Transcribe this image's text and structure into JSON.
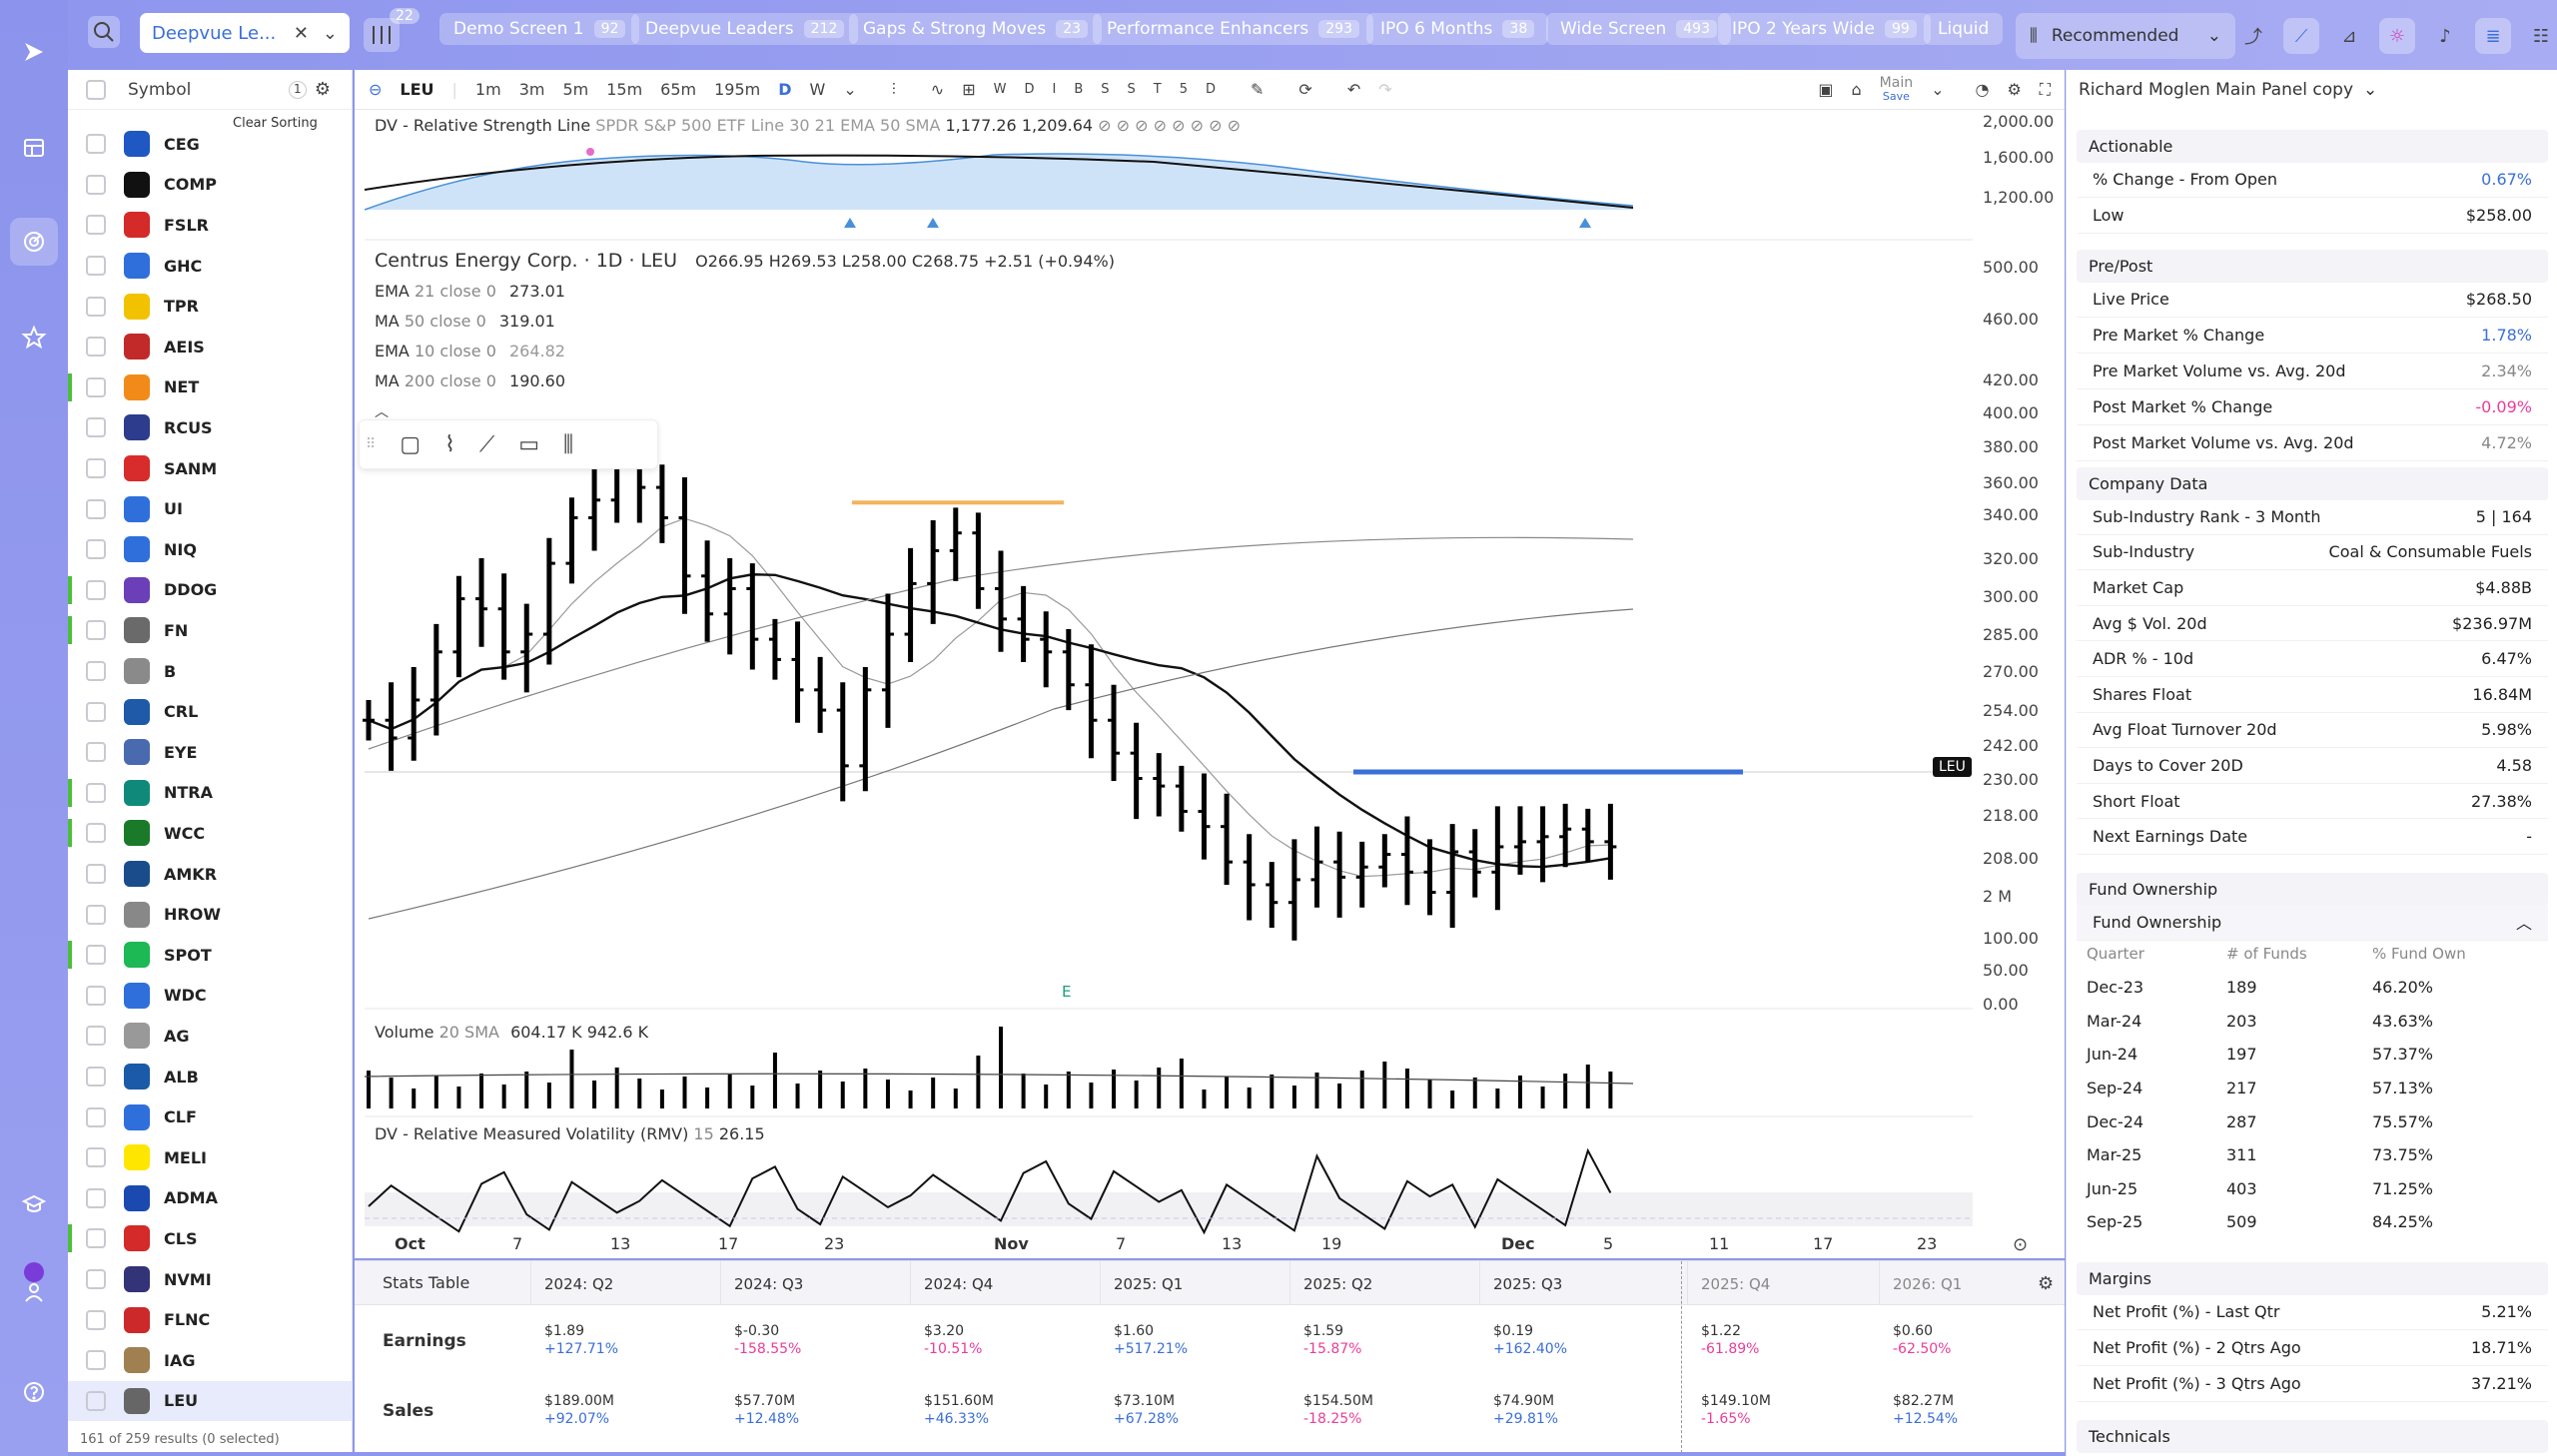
{
  "leftbar": {
    "icons": [
      "logo-icon",
      "grid-icon",
      "radar-icon",
      "star-icon",
      "graduation-icon",
      "user-icon",
      "help-icon"
    ]
  },
  "topbar": {
    "search_tab": "Deepvue Le...",
    "filter_badge": "22",
    "tabs": [
      {
        "label": "Demo Screen 1",
        "count": "92"
      },
      {
        "label": "Deepvue Leaders",
        "count": "212"
      },
      {
        "label": "Gaps & Strong Moves",
        "count": "23"
      },
      {
        "label": "Performance Enhancers",
        "count": "293"
      },
      {
        "label": "IPO 6 Months",
        "count": "38"
      },
      {
        "label": "Wide Screen",
        "count": "493"
      },
      {
        "label": "IPO 2 Years Wide",
        "count": "99"
      },
      {
        "label": "Liquid",
        "count": ""
      }
    ],
    "sort_label": "Recommended"
  },
  "watchlist": {
    "header": "Symbol",
    "sort_count": "1",
    "clear_sorting": "Clear Sorting",
    "symbols": [
      {
        "sym": "CEG",
        "color": "#1f57c3",
        "bar": false
      },
      {
        "sym": "COMP",
        "color": "#111111",
        "bar": false
      },
      {
        "sym": "FSLR",
        "color": "#d42a2a",
        "bar": false
      },
      {
        "sym": "GHC",
        "color": "#2f6fdc",
        "bar": false
      },
      {
        "sym": "TPR",
        "color": "#f2c200",
        "bar": false
      },
      {
        "sym": "AEIS",
        "color": "#c22a2a",
        "bar": false
      },
      {
        "sym": "NET",
        "color": "#f28a1a",
        "bar": true
      },
      {
        "sym": "RCUS",
        "color": "#2d3c8c",
        "bar": false
      },
      {
        "sym": "SANM",
        "color": "#d82c2c",
        "bar": false
      },
      {
        "sym": "UI",
        "color": "#2f6fdc",
        "bar": false
      },
      {
        "sym": "NIQ",
        "color": "#2f6fdc",
        "bar": false
      },
      {
        "sym": "DDOG",
        "color": "#6b3fb8",
        "bar": true
      },
      {
        "sym": "FN",
        "color": "#6a6a6a",
        "bar": true
      },
      {
        "sym": "B",
        "color": "#8a8a8a",
        "bar": false
      },
      {
        "sym": "CRL",
        "color": "#1e5aa8",
        "bar": false
      },
      {
        "sym": "EYE",
        "color": "#4a6ab0",
        "bar": false
      },
      {
        "sym": "NTRA",
        "color": "#0f8a7a",
        "bar": true
      },
      {
        "sym": "WCC",
        "color": "#1a7a2a",
        "bar": true
      },
      {
        "sym": "AMKR",
        "color": "#1a4c8c",
        "bar": false
      },
      {
        "sym": "HROW",
        "color": "#888888",
        "bar": false
      },
      {
        "sym": "SPOT",
        "color": "#1db954",
        "bar": true
      },
      {
        "sym": "WDC",
        "color": "#2f6fdc",
        "bar": false
      },
      {
        "sym": "AG",
        "color": "#999999",
        "bar": false
      },
      {
        "sym": "ALB",
        "color": "#1a5aa8",
        "bar": false
      },
      {
        "sym": "CLF",
        "color": "#2f6fdc",
        "bar": false
      },
      {
        "sym": "MELI",
        "color": "#ffe600",
        "bar": false
      },
      {
        "sym": "ADMA",
        "color": "#1a4ab0",
        "bar": false
      },
      {
        "sym": "CLS",
        "color": "#d42a2a",
        "bar": true
      },
      {
        "sym": "NVMI",
        "color": "#333377",
        "bar": false
      },
      {
        "sym": "FLNC",
        "color": "#cc2a2a",
        "bar": false
      },
      {
        "sym": "IAG",
        "color": "#a08050",
        "bar": false
      },
      {
        "sym": "LEU",
        "color": "#666666",
        "bar": false
      }
    ],
    "footer": "161 of 259 results (0 selected)"
  },
  "toolbar": {
    "symbol": "LEU",
    "intervals": [
      "1m",
      "3m",
      "5m",
      "15m",
      "65m",
      "195m",
      "D",
      "W"
    ],
    "ranges": [
      "W",
      "D",
      "I",
      "B",
      "S",
      "S",
      "T",
      "5",
      "D"
    ],
    "layout_name": "Main",
    "layout_save": "Save"
  },
  "chart": {
    "rs_line": {
      "title": "DV - Relative Strength Line",
      "params": "SPDR S&P 500 ETF Line 30 21 EMA 50 SMA",
      "v1": "1,177.26",
      "v2": "1,209.64"
    },
    "main": {
      "name": "Centrus Energy Corp. · 1D · LEU",
      "ohlc": "O266.95  H269.53  L258.00  C268.75  +2.51 (+0.94%)"
    },
    "indicators": [
      {
        "name": "EMA",
        "params": "21 close 0",
        "value": "273.01"
      },
      {
        "name": "MA",
        "params": "50 close 0",
        "value": "319.01"
      },
      {
        "name": "EMA",
        "params": "10 close 0",
        "value": "264.82"
      },
      {
        "name": "MA",
        "params": "200 close 0",
        "value": "190.60"
      }
    ],
    "price_label": "LEU",
    "earnings_marker": "E",
    "volume": {
      "title": "Volume",
      "params": "20 SMA",
      "v1": "604.17 K",
      "v2": "942.6 K"
    },
    "rmv": {
      "title": "DV - Relative Measured Volatility (RMV)",
      "params": "15",
      "value": "26.15"
    },
    "price_axis": [
      "2,000.00",
      "1,600.00",
      "1,200.00",
      "500.00",
      "460.00",
      "420.00",
      "400.00",
      "380.00",
      "360.00",
      "340.00",
      "320.00",
      "300.00",
      "285.00",
      "270.00",
      "254.00",
      "242.00",
      "230.00",
      "218.00",
      "208.00",
      "2 M",
      "100.00",
      "50.00",
      "0.00"
    ],
    "time_axis": [
      "Oct",
      "7",
      "13",
      "17",
      "23",
      "Nov",
      "7",
      "13",
      "19",
      "Dec",
      "5",
      "11",
      "17",
      "23"
    ]
  },
  "stats": {
    "title": "Stats Table",
    "quarters": [
      "2024: Q2",
      "2024: Q3",
      "2024: Q4",
      "2025: Q1",
      "2025: Q2",
      "2025: Q3",
      "2025: Q4",
      "2026: Q1"
    ],
    "earnings_label": "Earnings",
    "earnings": [
      [
        "$1.89",
        "+127.71%"
      ],
      [
        "$-0.30",
        "-158.55%"
      ],
      [
        "$3.20",
        "-10.51%"
      ],
      [
        "$1.60",
        "+517.21%"
      ],
      [
        "$1.59",
        "-15.87%"
      ],
      [
        "$0.19",
        "+162.40%"
      ],
      [
        "$1.22",
        "-61.89%"
      ],
      [
        "$0.60",
        "-62.50%"
      ]
    ],
    "sales_label": "Sales",
    "sales": [
      [
        "$189.00M",
        "+92.07%"
      ],
      [
        "$57.70M",
        "+12.48%"
      ],
      [
        "$151.60M",
        "+46.33%"
      ],
      [
        "$73.10M",
        "+67.28%"
      ],
      [
        "$154.50M",
        "-18.25%"
      ],
      [
        "$74.90M",
        "+29.81%"
      ],
      [
        "$149.10M",
        "-1.65%"
      ],
      [
        "$82.27M",
        "+12.54%"
      ]
    ]
  },
  "panel": {
    "title": "Richard Moglen Main Panel copy",
    "actionable": {
      "title": "Actionable",
      "rows": [
        [
          "% Change - From Open",
          "0.67%",
          "blue"
        ],
        [
          "Low",
          "$258.00",
          ""
        ]
      ]
    },
    "prepost": {
      "title": "Pre/Post",
      "rows": [
        [
          "Live Price",
          "$268.50",
          ""
        ],
        [
          "Pre Market % Change",
          "1.78%",
          "blue"
        ],
        [
          "Pre Market Volume vs. Avg. 20d",
          "2.34%",
          "grey"
        ],
        [
          "Post Market % Change",
          "-0.09%",
          "pink"
        ],
        [
          "Post Market Volume vs. Avg. 20d",
          "4.72%",
          "grey"
        ]
      ]
    },
    "company": {
      "title": "Company Data",
      "rows": [
        [
          "Sub-Industry Rank - 3 Month",
          "5 | 164",
          ""
        ],
        [
          "Sub-Industry",
          "Coal & Consumable Fuels",
          ""
        ],
        [
          "Market Cap",
          "$4.88B",
          ""
        ],
        [
          "Avg $ Vol. 20d",
          "$236.97M",
          ""
        ],
        [
          "ADR % - 10d",
          "6.47%",
          ""
        ],
        [
          "Shares Float",
          "16.84M",
          ""
        ],
        [
          "Avg Float Turnover 20d",
          "5.98%",
          ""
        ],
        [
          "Days to Cover 20D",
          "4.58",
          ""
        ],
        [
          "Short Float",
          "27.38%",
          ""
        ],
        [
          "Next Earnings Date",
          "-",
          ""
        ]
      ]
    },
    "fund": {
      "title": "Fund Ownership",
      "sub": "Fund Ownership",
      "headers": [
        "Quarter",
        "# of Funds",
        "% Fund Own"
      ],
      "rows": [
        [
          "Dec-23",
          "189",
          "46.20%"
        ],
        [
          "Mar-24",
          "203",
          "43.63%"
        ],
        [
          "Jun-24",
          "197",
          "57.37%"
        ],
        [
          "Sep-24",
          "217",
          "57.13%"
        ],
        [
          "Dec-24",
          "287",
          "75.57%"
        ],
        [
          "Mar-25",
          "311",
          "73.75%"
        ],
        [
          "Jun-25",
          "403",
          "71.25%"
        ],
        [
          "Sep-25",
          "509",
          "84.25%"
        ]
      ]
    },
    "margins": {
      "title": "Margins",
      "rows": [
        [
          "Net Profit (%) - Last Qtr",
          "5.21%"
        ],
        [
          "Net Profit (%) - 2 Qtrs Ago",
          "18.71%"
        ],
        [
          "Net Profit (%) - 3 Qtrs Ago",
          "37.21%"
        ]
      ]
    },
    "technicals": {
      "title": "Technicals"
    }
  },
  "colors": {
    "accent": "#8e96ee",
    "positive": "#3b6fd8",
    "negative": "#e83e9a",
    "price_line": "#3b6fd8"
  },
  "chart_data": {
    "type": "bar",
    "title": "Centrus Energy Corp. · 1D · LEU",
    "series_ohlc_close_approx": [
      318,
      311,
      326,
      345,
      366,
      362,
      345,
      352,
      380,
      398,
      405,
      418,
      410,
      398,
      375,
      360,
      370,
      350,
      342,
      330,
      322,
      300,
      330,
      352,
      372,
      385,
      392,
      370,
      358,
      350,
      345,
      332,
      318,
      305,
      295,
      292,
      282,
      276,
      262,
      253,
      246,
      255,
      262,
      256,
      260,
      265,
      258,
      250,
      266,
      258,
      268,
      270,
      272,
      275,
      270,
      268
    ],
    "ema21_last": 273.01,
    "ma50_last": 319.01,
    "ema10_last": 264.82,
    "ma200_last": 190.6,
    "last_price": 270,
    "ylim": [
      208,
      500
    ]
  }
}
